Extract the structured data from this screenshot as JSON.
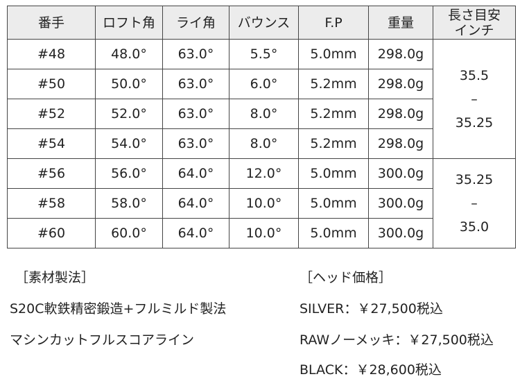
{
  "table": {
    "headers": [
      "番手",
      "ロフト角",
      "ライ角",
      "バウンス",
      "F.P",
      "重量",
      "長さ目安\nインチ"
    ],
    "header_len_line1": "長さ目安",
    "header_len_line2": "インチ",
    "rows": [
      [
        "#48",
        "48.0°",
        "63.0°",
        "5.5°",
        "5.0mm",
        "298.0g"
      ],
      [
        "#50",
        "50.0°",
        "63.0°",
        "6.0°",
        "5.2mm",
        "298.0g"
      ],
      [
        "#52",
        "52.0°",
        "63.0°",
        "8.0°",
        "5.2mm",
        "298.0g"
      ],
      [
        "#54",
        "54.0°",
        "63.0°",
        "8.0°",
        "5.2mm",
        "298.0g"
      ],
      [
        "#56",
        "56.0°",
        "64.0°",
        "12.0°",
        "5.0mm",
        "300.0g"
      ],
      [
        "#58",
        "58.0°",
        "64.0°",
        "10.0°",
        "5.0mm",
        "300.0g"
      ],
      [
        "#60",
        "60.0°",
        "64.0°",
        "10.0°",
        "5.0mm",
        "300.0g"
      ]
    ],
    "length_groups": [
      {
        "from": "35.5",
        "dash": "–",
        "to": "35.25"
      },
      {
        "from": "35.25",
        "dash": "–",
        "to": "35.0"
      }
    ]
  },
  "material": {
    "heading": "［素材製法］",
    "lines": [
      "S20C軟鉄精密鍛造+フルミルド製法",
      "マシンカットフルスコアライン"
    ]
  },
  "price": {
    "heading": "［ヘッド価格］",
    "lines": [
      "SILVER：￥27,500税込",
      "RAWノーメッキ：￥27,500税込",
      "BLACK：￥28,600税込"
    ]
  }
}
